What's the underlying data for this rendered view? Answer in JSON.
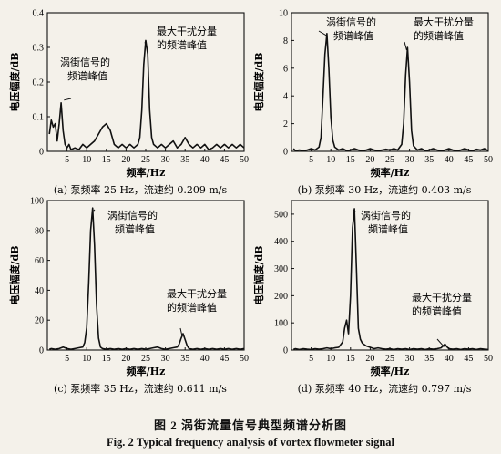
{
  "figure": {
    "caption_cn": "图 2   涡街流量信号典型频谱分析图",
    "caption_en": "Fig. 2   Typical frequency analysis of vortex flowmeter signal"
  },
  "chart_data": [
    {
      "type": "line",
      "panel": "a",
      "caption": "(a) 泵频率 25 Hz，流速约 0.209 m/s",
      "xlabel": "频率/Hz",
      "ylabel": "电压幅度/dB",
      "xlim": [
        0,
        50
      ],
      "ylim": [
        0,
        0.4
      ],
      "xticks": [
        5,
        10,
        15,
        20,
        25,
        30,
        35,
        40,
        45,
        50
      ],
      "yticks": [
        0,
        0.1,
        0.2,
        0.3,
        0.4
      ],
      "x": [
        0.5,
        1,
        1.5,
        2,
        2.5,
        3,
        3.5,
        4,
        4.5,
        5,
        5.5,
        6,
        7,
        8,
        9,
        10,
        11,
        12,
        13,
        14,
        15,
        16,
        17,
        18,
        19,
        20,
        21,
        22,
        23,
        23.5,
        24,
        24.5,
        25,
        25.5,
        26,
        26.5,
        27,
        28,
        29,
        30,
        31,
        32,
        33,
        34,
        35,
        36,
        37,
        38,
        39,
        40,
        41,
        42,
        43,
        44,
        45,
        46,
        47,
        48,
        49,
        50
      ],
      "y": [
        0.05,
        0.09,
        0.07,
        0.08,
        0.03,
        0.08,
        0.14,
        0.06,
        0.02,
        0.01,
        0.02,
        0.005,
        0.01,
        0.005,
        0.02,
        0.01,
        0.02,
        0.03,
        0.05,
        0.07,
        0.08,
        0.06,
        0.02,
        0.01,
        0.02,
        0.01,
        0.02,
        0.01,
        0.02,
        0.04,
        0.12,
        0.25,
        0.32,
        0.28,
        0.12,
        0.04,
        0.02,
        0.01,
        0.02,
        0.01,
        0.02,
        0.03,
        0.01,
        0.02,
        0.04,
        0.02,
        0.01,
        0.02,
        0.01,
        0.02,
        0.005,
        0.01,
        0.02,
        0.01,
        0.02,
        0.01,
        0.02,
        0.01,
        0.02,
        0.01
      ],
      "annotations": [
        {
          "text": "涡街信号的\n频谱峰值",
          "x": 4,
          "y": 0.14
        },
        {
          "text": "最大干扰分量\n的频谱峰值",
          "x": 25,
          "y": 0.32
        }
      ]
    },
    {
      "type": "line",
      "panel": "b",
      "caption": "(b) 泵频率 30 Hz，流速约 0.403 m/s",
      "xlabel": "频率/Hz",
      "ylabel": "电压幅度/dB",
      "xlim": [
        0,
        50
      ],
      "ylim": [
        0,
        10
      ],
      "xticks": [
        5,
        10,
        15,
        20,
        25,
        30,
        35,
        40,
        45,
        50
      ],
      "yticks": [
        0,
        2,
        4,
        6,
        8,
        10
      ],
      "x": [
        0.5,
        1,
        2,
        3,
        4,
        5,
        6,
        7,
        7.5,
        8,
        8.5,
        9,
        9.5,
        10,
        10.5,
        11,
        12,
        13,
        14,
        15,
        16,
        17,
        18,
        19,
        20,
        21,
        22,
        23,
        24,
        25,
        26,
        27,
        28,
        28.5,
        29,
        29.5,
        30,
        30.5,
        31,
        32,
        33,
        34,
        35,
        36,
        37,
        38,
        39,
        40,
        41,
        42,
        43,
        44,
        45,
        46,
        47,
        48,
        49,
        50
      ],
      "y": [
        0.2,
        0.05,
        0.1,
        0.05,
        0.1,
        0.2,
        0.1,
        0.3,
        1.0,
        4.0,
        7.0,
        8.5,
        6.0,
        2.5,
        0.8,
        0.3,
        0.1,
        0.2,
        0.05,
        0.1,
        0.2,
        0.1,
        0.05,
        0.1,
        0.2,
        0.1,
        0.05,
        0.1,
        0.15,
        0.1,
        0.2,
        0.1,
        0.5,
        2.0,
        5.5,
        7.5,
        5.0,
        1.5,
        0.4,
        0.1,
        0.2,
        0.05,
        0.1,
        0.2,
        0.1,
        0.05,
        0.1,
        0.2,
        0.1,
        0.05,
        0.1,
        0.2,
        0.1,
        0.05,
        0.15,
        0.1,
        0.2,
        0.05
      ],
      "annotations": [
        {
          "text": "涡街信号的\n频谱峰值",
          "x": 9,
          "y": 8.5
        },
        {
          "text": "最大干扰分量\n的频谱峰值",
          "x": 29.5,
          "y": 7.5
        }
      ]
    },
    {
      "type": "line",
      "panel": "c",
      "caption": "(c) 泵频率 35 Hz，流速约 0.611 m/s",
      "xlabel": "频率/Hz",
      "ylabel": "电压幅度/dB",
      "xlim": [
        0,
        50
      ],
      "ylim": [
        0,
        100
      ],
      "xticks": [
        5,
        10,
        15,
        20,
        25,
        30,
        35,
        40,
        45,
        50
      ],
      "yticks": [
        0,
        20,
        40,
        60,
        80,
        100
      ],
      "x": [
        0.5,
        1,
        2,
        3,
        4,
        5,
        6,
        7,
        8,
        9,
        9.5,
        10,
        10.5,
        11,
        11.5,
        12,
        12.5,
        13,
        13.5,
        14,
        15,
        16,
        17,
        18,
        19,
        20,
        21,
        22,
        23,
        24,
        25,
        26,
        27,
        28,
        29,
        30,
        31,
        32,
        33,
        33.5,
        34,
        34.5,
        35,
        35.5,
        36,
        37,
        38,
        39,
        40,
        41,
        42,
        43,
        44,
        45,
        46,
        47,
        48,
        49,
        50
      ],
      "y": [
        0.5,
        1,
        0.5,
        1,
        2,
        1,
        0.5,
        1,
        1.5,
        2,
        5,
        15,
        45,
        80,
        95,
        70,
        30,
        8,
        2,
        1,
        0.5,
        1,
        0.5,
        1,
        0.5,
        1,
        0.5,
        1,
        0.5,
        1,
        0.5,
        1,
        1.5,
        2,
        1,
        0.5,
        1,
        1.5,
        2,
        4,
        8,
        11,
        7,
        3,
        1,
        0.5,
        1,
        0.5,
        1,
        0.5,
        1,
        0.5,
        1,
        0.5,
        1,
        0.5,
        1,
        0.5,
        1
      ],
      "annotations": [
        {
          "text": "涡街信号的\n频谱峰值",
          "x": 11.5,
          "y": 95
        },
        {
          "text": "最大干扰分量\n的频谱峰值",
          "x": 34.5,
          "y": 11
        }
      ]
    },
    {
      "type": "line",
      "panel": "d",
      "caption": "(d) 泵频率 40 Hz，流速约 0.797 m/s",
      "xlabel": "频率/Hz",
      "ylabel": "电压幅度/dB",
      "xlim": [
        0,
        50
      ],
      "ylim": [
        0,
        550
      ],
      "xticks": [
        5,
        10,
        15,
        20,
        25,
        30,
        35,
        40,
        45,
        50
      ],
      "yticks": [
        0,
        100,
        200,
        300,
        400,
        500
      ],
      "x": [
        0.5,
        1,
        2,
        3,
        4,
        5,
        6,
        7,
        8,
        9,
        10,
        11,
        12,
        13,
        13.5,
        14,
        14.5,
        15,
        15.5,
        16,
        16.5,
        17,
        17.5,
        18,
        19,
        20,
        21,
        22,
        23,
        24,
        25,
        26,
        27,
        28,
        29,
        30,
        31,
        32,
        33,
        34,
        35,
        36,
        37,
        38,
        38.5,
        39,
        39.5,
        40,
        41,
        42,
        43,
        44,
        45,
        46,
        47,
        48,
        49,
        50
      ],
      "y": [
        2,
        5,
        2,
        5,
        3,
        2,
        5,
        3,
        5,
        8,
        5,
        8,
        10,
        30,
        80,
        110,
        60,
        200,
        450,
        520,
        300,
        80,
        40,
        25,
        15,
        10,
        5,
        8,
        5,
        3,
        5,
        2,
        5,
        3,
        5,
        2,
        5,
        3,
        5,
        2,
        5,
        3,
        5,
        8,
        15,
        22,
        12,
        5,
        3,
        5,
        2,
        5,
        3,
        5,
        2,
        5,
        3,
        2
      ],
      "annotations": [
        {
          "text": "涡街信号的\n频谱峰值",
          "x": 16,
          "y": 520
        },
        {
          "text": "最大干扰分量\n的频谱峰值",
          "x": 39,
          "y": 22
        }
      ]
    }
  ]
}
